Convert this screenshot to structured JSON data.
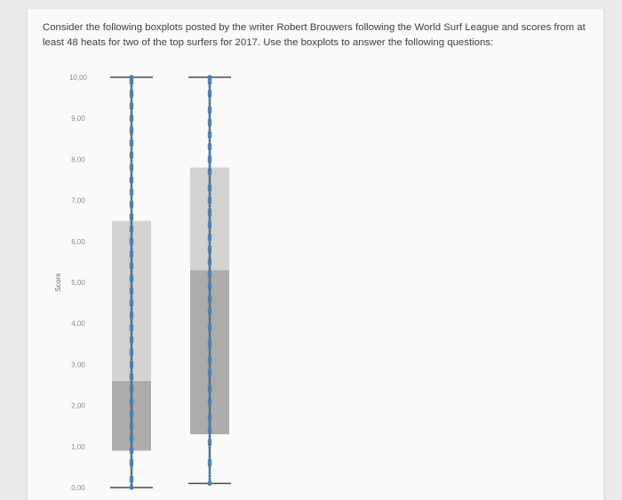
{
  "question": {
    "text": "Consider the following boxplots posted by the writer Robert Brouwers following the World Surf League and scores from at least 48 heats for two of the top surfers for 2017.  Use the boxplots to answer the following questions:"
  },
  "chart_data": {
    "type": "boxplot",
    "ylabel": "Score",
    "ylim": [
      0,
      10
    ],
    "yticks": [
      "0,00",
      "1,00",
      "2,00",
      "3,00",
      "4,00",
      "5,00",
      "6,00",
      "7,00",
      "8,00",
      "9,00",
      "10,00"
    ],
    "grid": false,
    "series": [
      {
        "min": 0.0,
        "q1": 0.9,
        "median": 2.6,
        "q3": 6.5,
        "max": 10.0,
        "points": [
          9.9,
          9.6,
          9.3,
          9.0,
          8.7,
          8.4,
          8.1,
          7.8,
          7.5,
          7.2,
          6.9,
          6.6,
          6.3,
          6.0,
          5.7,
          5.4,
          5.1,
          4.8,
          4.5,
          4.2,
          3.9,
          3.6,
          3.3,
          3.0,
          2.7,
          2.4,
          2.1,
          1.8,
          1.5,
          1.2,
          0.9,
          0.6,
          0.2
        ]
      },
      {
        "min": 0.1,
        "q1": 1.3,
        "median": 5.3,
        "q3": 7.8,
        "max": 10.0,
        "points": [
          9.9,
          9.6,
          9.2,
          8.9,
          8.6,
          8.3,
          8.0,
          7.7,
          7.3,
          7.0,
          6.7,
          6.4,
          6.1,
          5.8,
          5.5,
          5.2,
          4.9,
          4.6,
          4.3,
          3.9,
          3.5,
          3.1,
          2.8,
          2.4,
          2.1,
          1.7,
          1.4,
          1.1,
          0.6
        ]
      }
    ],
    "colors": {
      "box_light": "#d3d3d3",
      "box_dark": "#acacac",
      "whisker": "#4a4a4a",
      "points": "#4f7fad",
      "tick_text": "#8a8a8a"
    }
  }
}
